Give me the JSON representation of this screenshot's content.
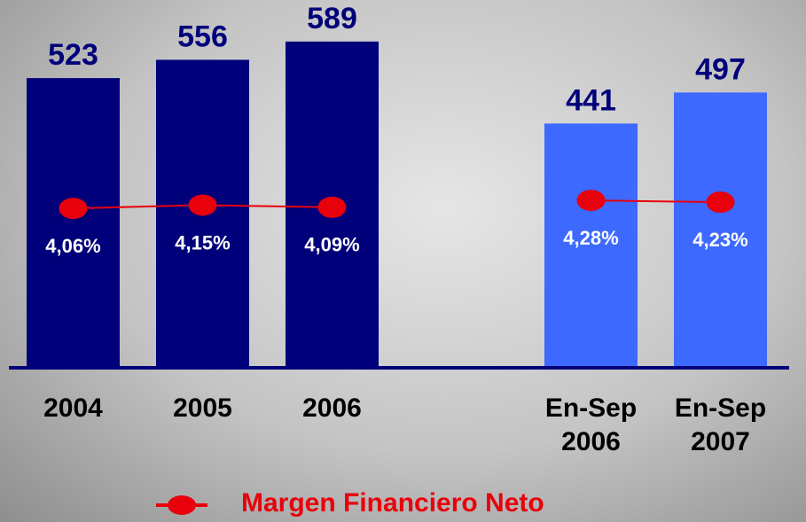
{
  "chart_data": {
    "type": "bar_line",
    "categories": [
      "2004",
      "2005",
      "2006",
      null,
      "En-Sep 2006",
      "En-Sep 2007"
    ],
    "ylim": [
      0,
      660
    ],
    "y2lim": [
      -0.3,
      9.7
    ],
    "series": [
      {
        "values": [
          523,
          556,
          589,
          null,
          441,
          497
        ],
        "colors": [
          "#00007a",
          "#00007a",
          "#00007a",
          null,
          "#3d69ff",
          "#3d69ff"
        ]
      },
      {
        "name": "Margen Financiero Neto",
        "color": "#e8000b",
        "axis": "y2",
        "type": "line",
        "values": [
          4.06,
          4.15,
          4.09,
          null,
          4.28,
          4.23
        ],
        "value_labels": [
          "4,06%",
          "4,15%",
          "4,09%",
          null,
          "4,28%",
          "4,23%"
        ]
      }
    ],
    "legend": "bottom"
  }
}
